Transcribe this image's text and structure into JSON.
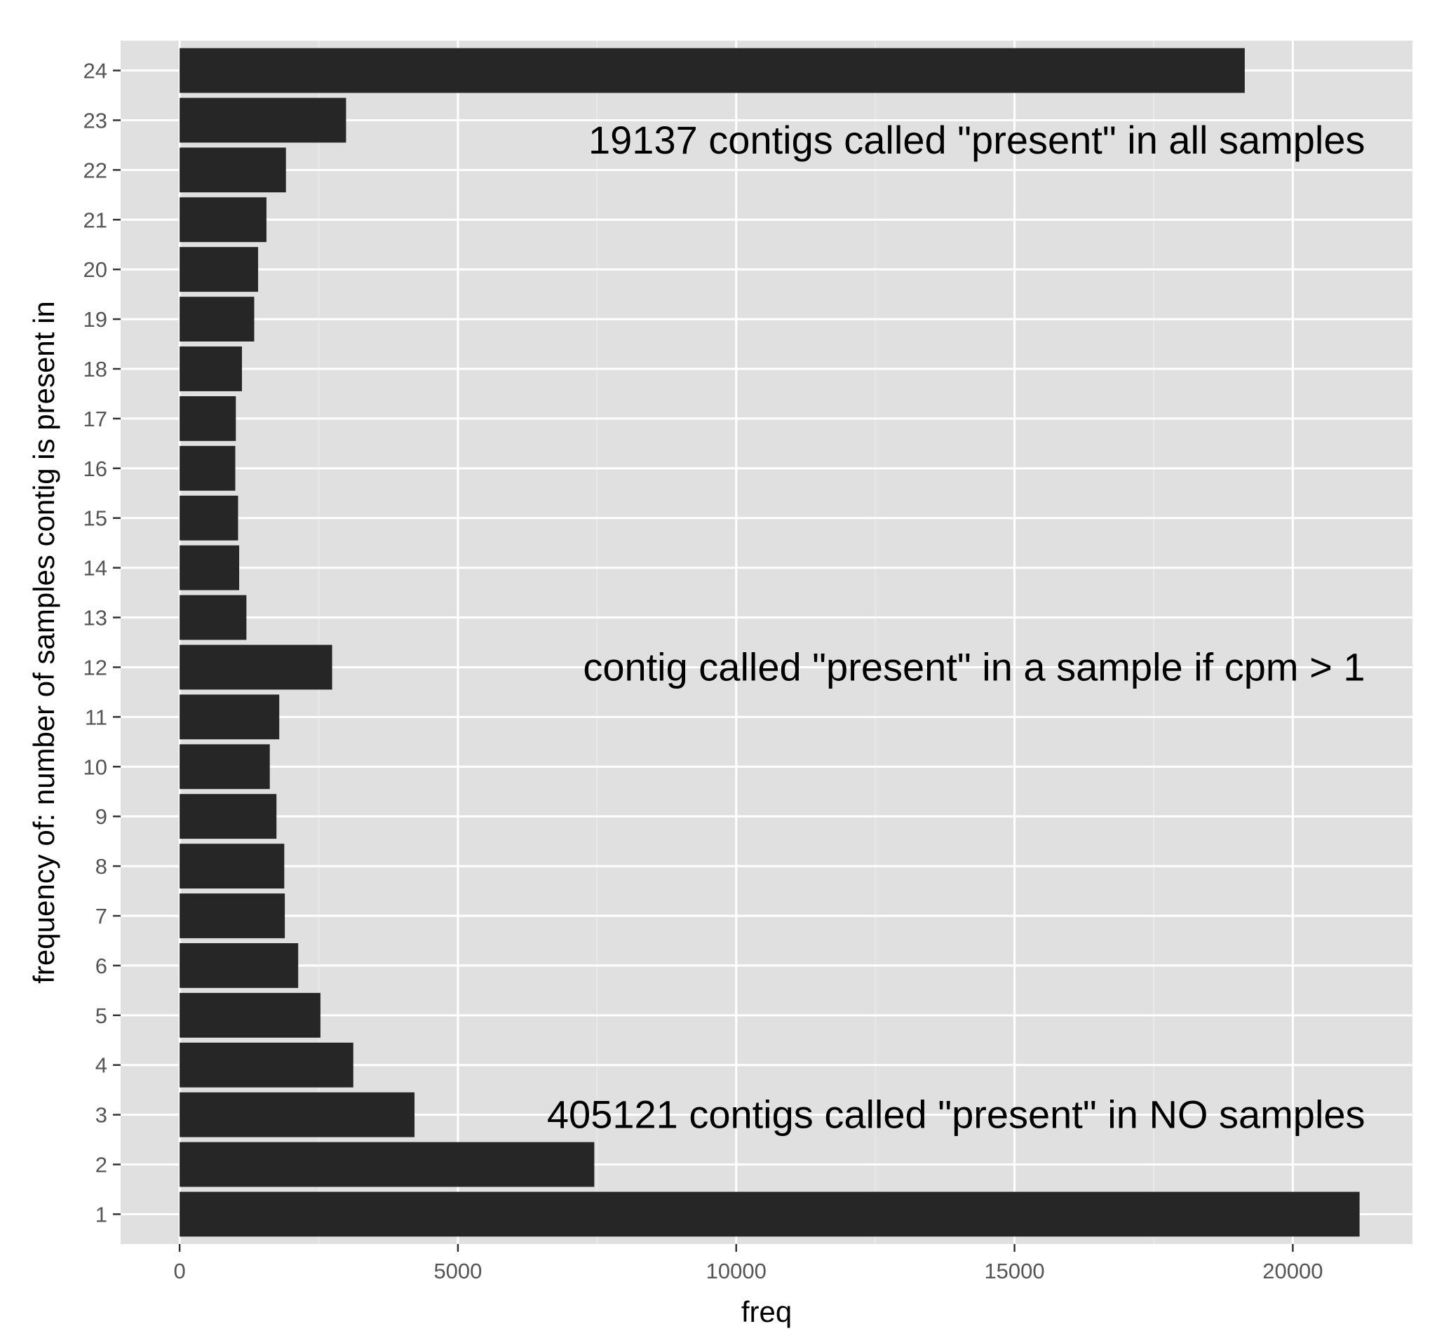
{
  "chart_data": {
    "type": "bar",
    "orientation": "horizontal",
    "title": "",
    "xlabel": "freq",
    "ylabel": "frequency of: number of samples contig is present in",
    "xlim": [
      -1060,
      22150
    ],
    "x_ticks": [
      0,
      5000,
      10000,
      15000,
      20000
    ],
    "x_tick_labels": [
      "0",
      "5000",
      "10000",
      "15000",
      "20000"
    ],
    "categories": [
      "1",
      "2",
      "3",
      "4",
      "5",
      "6",
      "7",
      "8",
      "9",
      "10",
      "11",
      "12",
      "13",
      "14",
      "15",
      "16",
      "17",
      "18",
      "19",
      "20",
      "21",
      "22",
      "23",
      "24"
    ],
    "values": [
      21200,
      7450,
      4220,
      3120,
      2530,
      2130,
      1890,
      1880,
      1740,
      1620,
      1790,
      2740,
      1200,
      1070,
      1050,
      1000,
      1010,
      1120,
      1340,
      1410,
      1560,
      1910,
      2990,
      19137
    ],
    "grid": true,
    "legend": "none",
    "annotations": [
      {
        "text": "19137 contigs called \"present\" in all samples",
        "x": 21300,
        "y": 22.6
      },
      {
        "text": "contig called \"present\" in a sample if cpm > 1",
        "x": 21300,
        "y": 12.0
      },
      {
        "text": "405121 contigs called \"present\" in NO samples",
        "x": 21300,
        "y": 3.0
      }
    ],
    "colors": {
      "bar": "#262626",
      "panel": "#e0e0e0",
      "grid_major": "#ffffff",
      "grid_minor": "#ebebeb",
      "tick_text": "#555555"
    }
  }
}
